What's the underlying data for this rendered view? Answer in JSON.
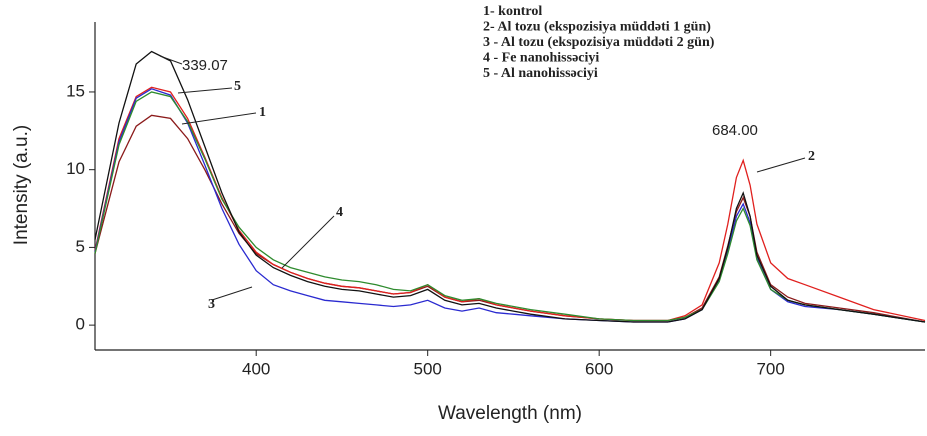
{
  "chart_data": {
    "type": "line",
    "x_label": "Wavelength (nm)",
    "y_label": "Intensity (a.u.)",
    "x": [
      306,
      320,
      330,
      339,
      350,
      360,
      370,
      380,
      390,
      400,
      410,
      420,
      430,
      440,
      450,
      460,
      470,
      480,
      490,
      500,
      510,
      520,
      530,
      540,
      550,
      560,
      580,
      600,
      620,
      640,
      650,
      660,
      670,
      675,
      680,
      684,
      688,
      692,
      700,
      710,
      720,
      740,
      760,
      790
    ],
    "series": [
      {
        "name": "1- kontrol",
        "color": "#8b1a1a",
        "values": [
          4.6,
          10.5,
          12.8,
          13.5,
          13.3,
          12,
          10,
          7.8,
          5.9,
          4.6,
          3.9,
          3.4,
          3,
          2.7,
          2.5,
          2.4,
          2.2,
          2,
          2.1,
          2.5,
          1.8,
          1.5,
          1.6,
          1.3,
          1.1,
          0.9,
          0.6,
          0.4,
          0.3,
          0.3,
          0.5,
          1.1,
          3.1,
          5.1,
          7.3,
          8.2,
          7,
          4.7,
          2.6,
          1.8,
          1.4,
          1.1,
          0.8,
          0.2
        ]
      },
      {
        "name": "2- Al tozu  (ekspozisiya müddəti 1 gün)",
        "color": "#e0201e",
        "values": [
          4.8,
          12,
          14.7,
          15.3,
          15,
          13.3,
          10.8,
          8.2,
          6.1,
          4.7,
          3.9,
          3.4,
          3,
          2.7,
          2.5,
          2.4,
          2.2,
          2,
          2.1,
          2.6,
          1.8,
          1.5,
          1.7,
          1.3,
          1.1,
          0.9,
          0.6,
          0.4,
          0.3,
          0.3,
          0.6,
          1.3,
          4,
          6.5,
          9.5,
          10.6,
          9,
          6.5,
          4,
          3,
          2.6,
          1.8,
          1,
          0.3
        ]
      },
      {
        "name": "3 - Al tozu (ekspozisiya müddəti 2 gün)",
        "color": "#2a2ad0",
        "values": [
          4.7,
          11.8,
          14.6,
          15.2,
          14.8,
          13,
          10.3,
          7.5,
          5.2,
          3.5,
          2.6,
          2.2,
          1.9,
          1.6,
          1.5,
          1.4,
          1.3,
          1.2,
          1.3,
          1.6,
          1.1,
          0.9,
          1.1,
          0.8,
          0.7,
          0.6,
          0.4,
          0.3,
          0.2,
          0.2,
          0.4,
          1,
          2.9,
          4.8,
          7,
          7.8,
          6.6,
          4.3,
          2.3,
          1.5,
          1.2,
          1,
          0.7,
          0.2
        ]
      },
      {
        "name": "4 - Fe nanohissəciyi",
        "color": "#2e8b2e",
        "values": [
          4.6,
          11.6,
          14.4,
          15,
          14.7,
          13.1,
          10.7,
          8.1,
          6.3,
          5,
          4.2,
          3.7,
          3.4,
          3.1,
          2.9,
          2.8,
          2.6,
          2.3,
          2.2,
          2.6,
          1.9,
          1.6,
          1.7,
          1.4,
          1.2,
          1,
          0.7,
          0.4,
          0.3,
          0.3,
          0.5,
          1,
          2.8,
          4.6,
          6.7,
          7.5,
          6.4,
          4.2,
          2.3,
          1.6,
          1.3,
          1,
          0.7,
          0.2
        ]
      },
      {
        "name": "5 - Al nanohissəciyi",
        "color": "#111111",
        "values": [
          5.5,
          13,
          16.8,
          17.6,
          17,
          14.5,
          11.5,
          8.5,
          6,
          4.5,
          3.7,
          3.2,
          2.8,
          2.5,
          2.3,
          2.2,
          2,
          1.8,
          1.9,
          2.3,
          1.6,
          1.3,
          1.4,
          1.1,
          0.9,
          0.7,
          0.4,
          0.3,
          0.2,
          0.2,
          0.4,
          1,
          3,
          5,
          7.5,
          8.5,
          7,
          4.5,
          2.5,
          1.6,
          1.3,
          1,
          0.7,
          0.2
        ]
      }
    ],
    "annotations": [
      "339.07",
      "684.00",
      "5",
      "1",
      "4",
      "3",
      "2"
    ],
    "xlim": [
      306,
      790
    ],
    "ylim": [
      -1.6,
      19.5
    ],
    "xticks": [
      400,
      500,
      600,
      700
    ],
    "yticks": [
      0,
      5,
      10,
      15
    ],
    "grid": false,
    "legend": "upper right"
  }
}
